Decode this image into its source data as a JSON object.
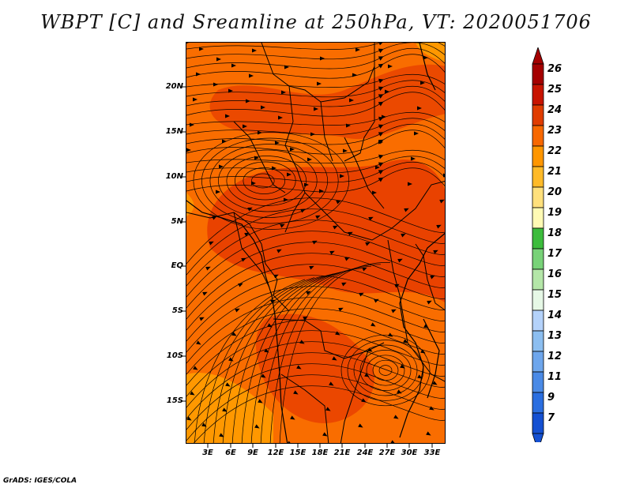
{
  "title": "WBPT [C] and Sreamline at 250hPa, VT: 2020051706",
  "credit": "GrADS: IGES/COLA",
  "map": {
    "lat_labels": [
      "20N",
      "15N",
      "10N",
      "5N",
      "EQ",
      "5S",
      "10S",
      "15S"
    ],
    "lon_labels": [
      "3E",
      "6E",
      "9E",
      "12E",
      "15E",
      "18E",
      "21E",
      "24E",
      "27E",
      "30E",
      "33E"
    ],
    "field_colors": {
      "t22": "#ff9c00",
      "t23": "#f96d00",
      "t24": "#e63b00"
    }
  },
  "colorbar": {
    "labels": [
      "26",
      "25",
      "24",
      "23",
      "22",
      "21",
      "20",
      "19",
      "18",
      "17",
      "16",
      "15",
      "14",
      "13",
      "12",
      "11",
      "9",
      "7"
    ],
    "colors": [
      "#a50000",
      "#c81400",
      "#e03c00",
      "#f86800",
      "#ff9600",
      "#ffba28",
      "#ffe07c",
      "#fffab4",
      "#3cbc3c",
      "#78d278",
      "#b4e6a8",
      "#e6f8e6",
      "#b4d2fa",
      "#8cbef0",
      "#6ea6ec",
      "#4a8ae6",
      "#2a6ee0",
      "#1450d2"
    ]
  }
}
